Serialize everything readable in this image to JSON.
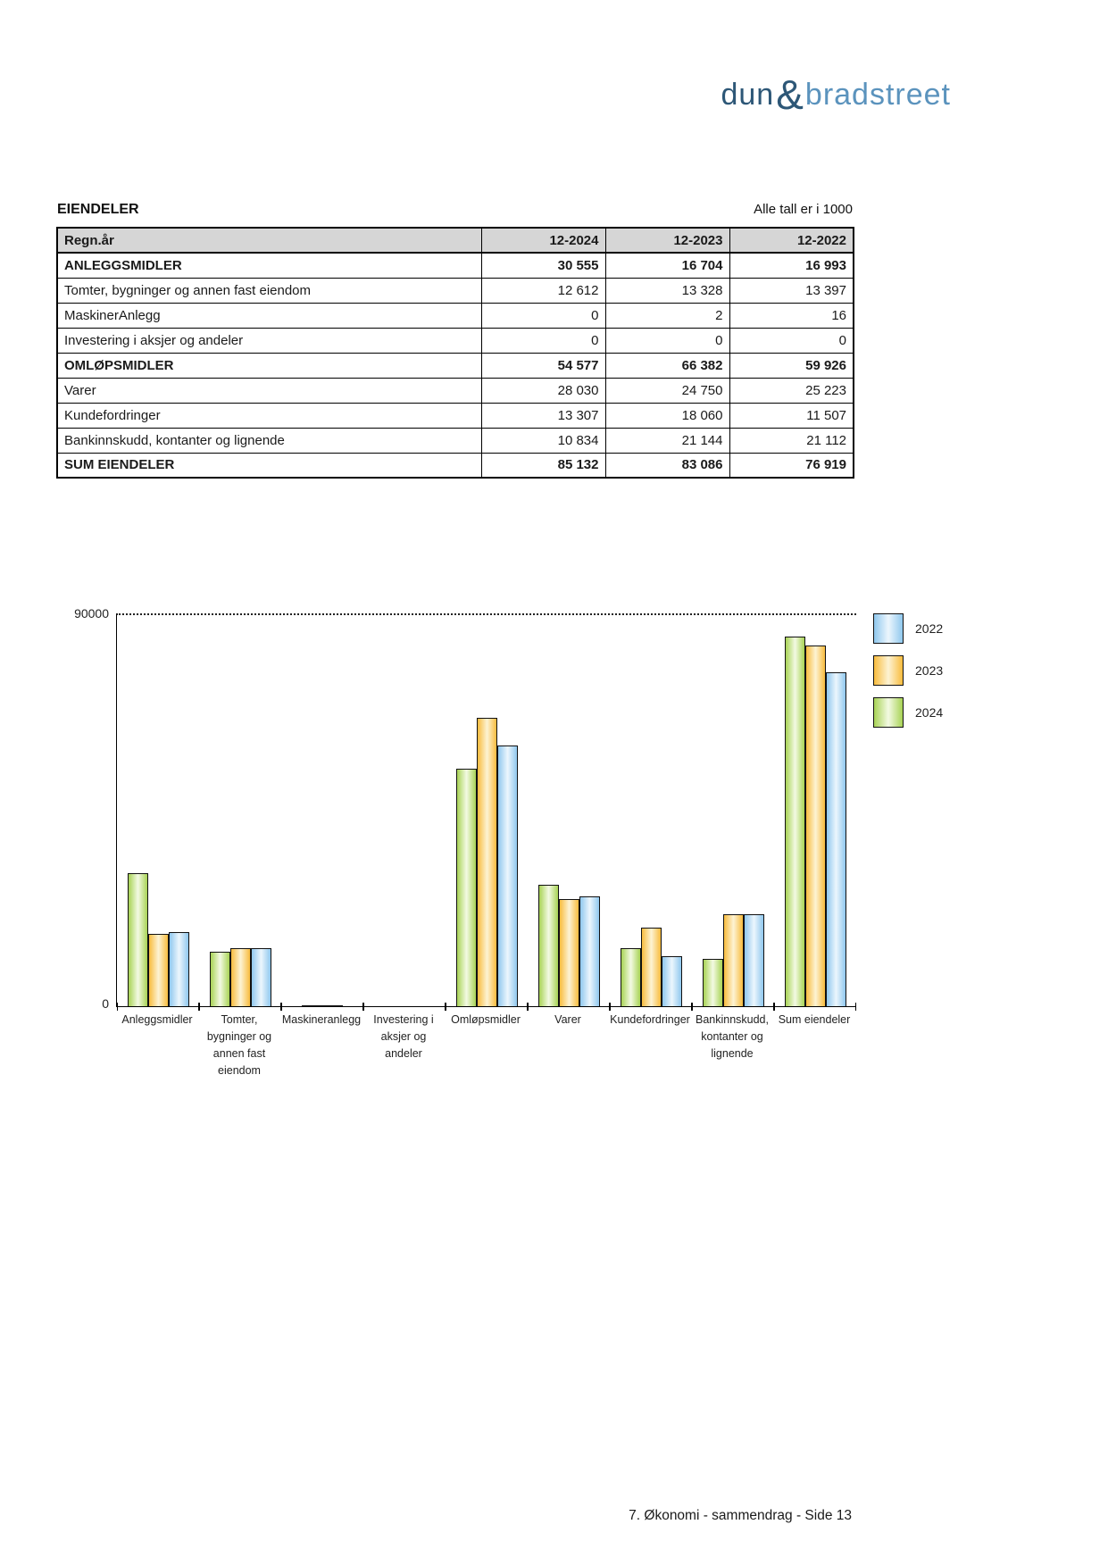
{
  "logo": {
    "dun": "dun",
    "amp": "&",
    "bradstreet": "bradstreet"
  },
  "section": {
    "title": "EIENDELER",
    "note": "Alle tall er i 1000"
  },
  "table": {
    "header": {
      "label": "Regn.år",
      "cols": [
        "12-2024",
        "12-2023",
        "12-2022"
      ]
    },
    "rows": [
      {
        "label": "ANLEGGSMIDLER",
        "values": [
          "30 555",
          "16 704",
          "16 993"
        ],
        "bold": true
      },
      {
        "label": "Tomter, bygninger og annen fast eiendom",
        "values": [
          "12 612",
          "13 328",
          "13 397"
        ],
        "bold": false
      },
      {
        "label": "MaskinerAnlegg",
        "values": [
          "0",
          "2",
          "16"
        ],
        "bold": false
      },
      {
        "label": "Investering i aksjer og andeler",
        "values": [
          "0",
          "0",
          "0"
        ],
        "bold": false
      },
      {
        "label": "OMLØPSMIDLER",
        "values": [
          "54 577",
          "66 382",
          "59 926"
        ],
        "bold": true
      },
      {
        "label": "Varer",
        "values": [
          "28 030",
          "24 750",
          "25 223"
        ],
        "bold": false
      },
      {
        "label": "Kundefordringer",
        "values": [
          "13 307",
          "18 060",
          "11 507"
        ],
        "bold": false
      },
      {
        "label": "Bankinnskudd, kontanter og lignende",
        "values": [
          "10 834",
          "21 144",
          "21 112"
        ],
        "bold": false
      },
      {
        "label": "SUM EIENDELER",
        "values": [
          "85 132",
          "83 086",
          "76 919"
        ],
        "bold": true
      }
    ]
  },
  "chart_data": {
    "type": "bar",
    "title": "",
    "xlabel": "",
    "ylabel": "",
    "ylim": [
      0,
      90000
    ],
    "gridline": {
      "value": 90000,
      "style": "dotted"
    },
    "ytick_labels": {
      "top": "90000",
      "bottom": "0"
    },
    "categories": [
      [
        "Anleggsmidler"
      ],
      [
        "Tomter,",
        "bygninger og",
        "annen fast",
        "eiendom"
      ],
      [
        "Maskineranlegg"
      ],
      [
        "Investering i",
        "aksjer og",
        "andeler"
      ],
      [
        "Omløpsmidler"
      ],
      [
        "Varer"
      ],
      [
        "Kundefordringer"
      ],
      [
        "Bankinnskudd,",
        "kontanter og",
        "lignende"
      ],
      [
        "Sum eiendeler"
      ]
    ],
    "series": [
      {
        "name": "2024",
        "edge": "#a8d355",
        "center": "#f3fae3",
        "values": [
          30555,
          12612,
          0,
          0,
          54577,
          28030,
          13307,
          10834,
          85132
        ]
      },
      {
        "name": "2023",
        "edge": "#f8bc3e",
        "center": "#fdf3d4",
        "values": [
          16704,
          13328,
          2,
          0,
          66382,
          24750,
          18060,
          21144,
          83086
        ]
      },
      {
        "name": "2022",
        "edge": "#90c8ee",
        "center": "#ecf6fd",
        "values": [
          16993,
          13397,
          16,
          0,
          59926,
          25223,
          11507,
          21112,
          76919
        ]
      }
    ],
    "legend": [
      {
        "label": "2022",
        "edge": "#90c8ee",
        "center": "#ecf6fd"
      },
      {
        "label": "2023",
        "edge": "#f8bc3e",
        "center": "#fdf3d4"
      },
      {
        "label": "2024",
        "edge": "#a8d355",
        "center": "#f3fae3"
      }
    ],
    "legend_position": "right-top"
  },
  "footer": {
    "text": "7. Økonomi - sammendrag - Side 13"
  }
}
